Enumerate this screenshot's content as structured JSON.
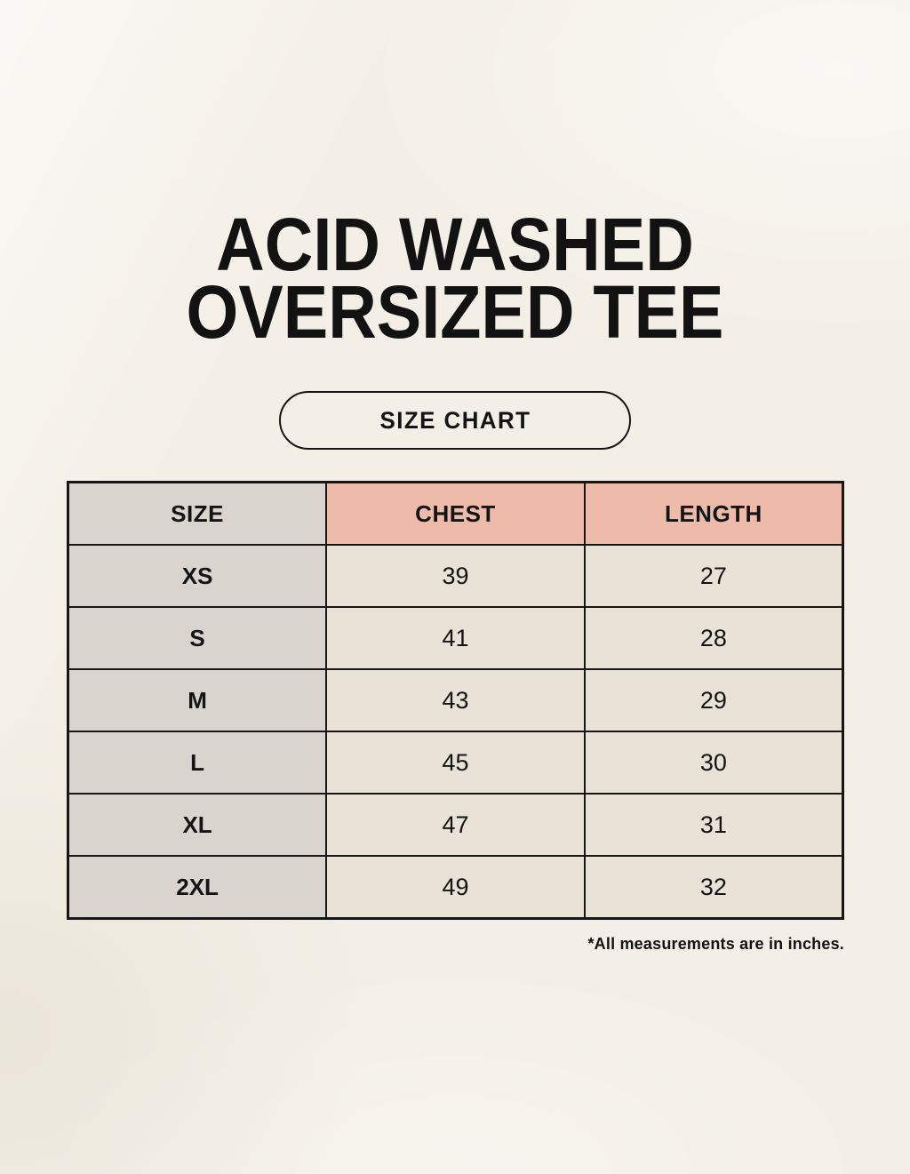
{
  "page": {
    "title_line1": "ACID WASHED",
    "title_line2": "OVERSIZED TEE",
    "badge_label": "SIZE CHART",
    "footnote": "*All measurements are in inches."
  },
  "size_table": {
    "headers": {
      "size": "SIZE",
      "chest": "CHEST",
      "length": "LENGTH"
    },
    "rows": [
      {
        "size": "XS",
        "chest": "39",
        "length": "27"
      },
      {
        "size": "S",
        "chest": "41",
        "length": "28"
      },
      {
        "size": "M",
        "chest": "43",
        "length": "29"
      },
      {
        "size": "L",
        "chest": "45",
        "length": "30"
      },
      {
        "size": "XL",
        "chest": "47",
        "length": "31"
      },
      {
        "size": "2XL",
        "chest": "49",
        "length": "32"
      }
    ],
    "units": "inches"
  },
  "colors": {
    "background": "#f3efe6",
    "header_accent": "#eebbab",
    "size_column": "#dad4cf",
    "data_cell": "#e9e3d7",
    "border": "#161616",
    "text": "#121212"
  }
}
